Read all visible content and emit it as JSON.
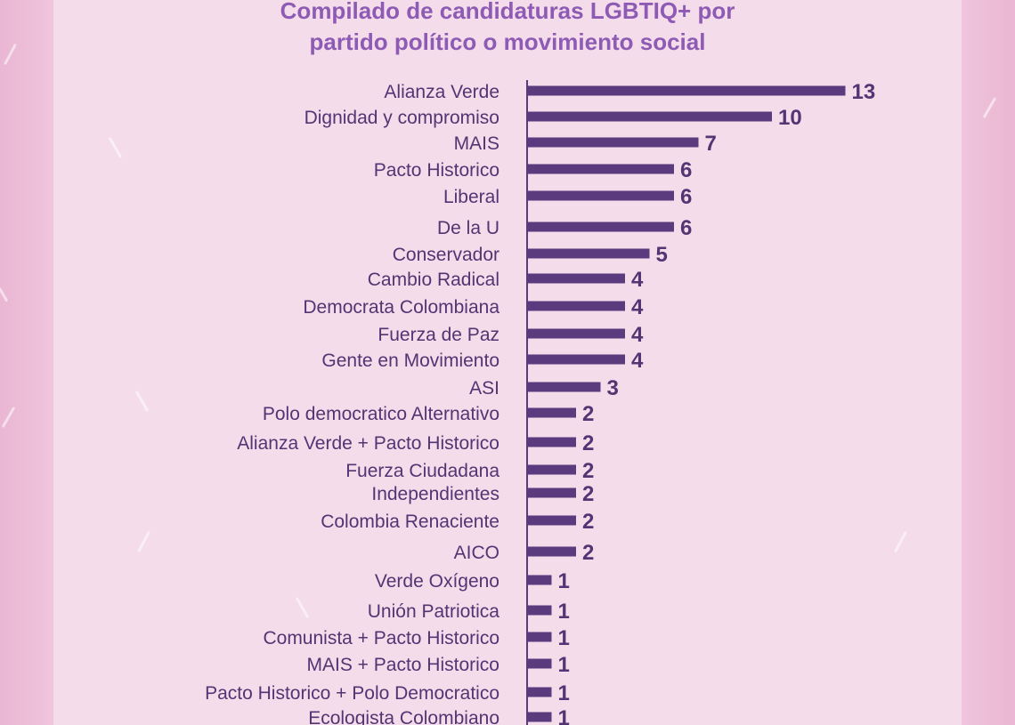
{
  "chart_data": {
    "type": "bar",
    "orientation": "horizontal",
    "title_lines": [
      "Compilado de candidaturas LGBTIQ+ por",
      "partido político o movimiento social"
    ],
    "categories": [
      "Alianza Verde",
      "Dignidad y compromiso",
      "MAIS",
      "Pacto Historico",
      "Liberal",
      "De la U",
      "Conservador",
      "Cambio Radical",
      "Democrata Colombiana",
      "Fuerza de Paz",
      "Gente en Movimiento",
      "ASI",
      "Polo democratico Alternativo",
      "Alianza Verde + Pacto Historico",
      "Fuerza Ciudadana",
      "Independientes",
      "Colombia Renaciente",
      "AICO",
      "Verde Oxígeno",
      "Unión Patriotica",
      "Comunista + Pacto Historico",
      "MAIS + Pacto Historico",
      "Pacto Historico + Polo Democratico",
      "Ecologista Colombiano"
    ],
    "values": [
      13,
      10,
      7,
      6,
      6,
      6,
      5,
      4,
      4,
      4,
      4,
      3,
      2,
      2,
      2,
      2,
      2,
      2,
      1,
      1,
      1,
      1,
      1,
      1
    ],
    "value_labels": [
      "13",
      "10",
      "7",
      "6",
      "6",
      "6",
      "5",
      "4",
      "4",
      "4",
      "4",
      "3",
      "2",
      "2",
      "2",
      "2",
      "2",
      "2",
      "1",
      "1",
      "1",
      "1",
      "1",
      "1"
    ],
    "xlim": [
      0,
      13
    ],
    "grid": false,
    "legend": "none"
  },
  "colors": {
    "bar": "#5b3a7e",
    "text": "#563373",
    "title": "#8e5bb4",
    "panel": "#f4dcea",
    "background": "#eec0da"
  }
}
